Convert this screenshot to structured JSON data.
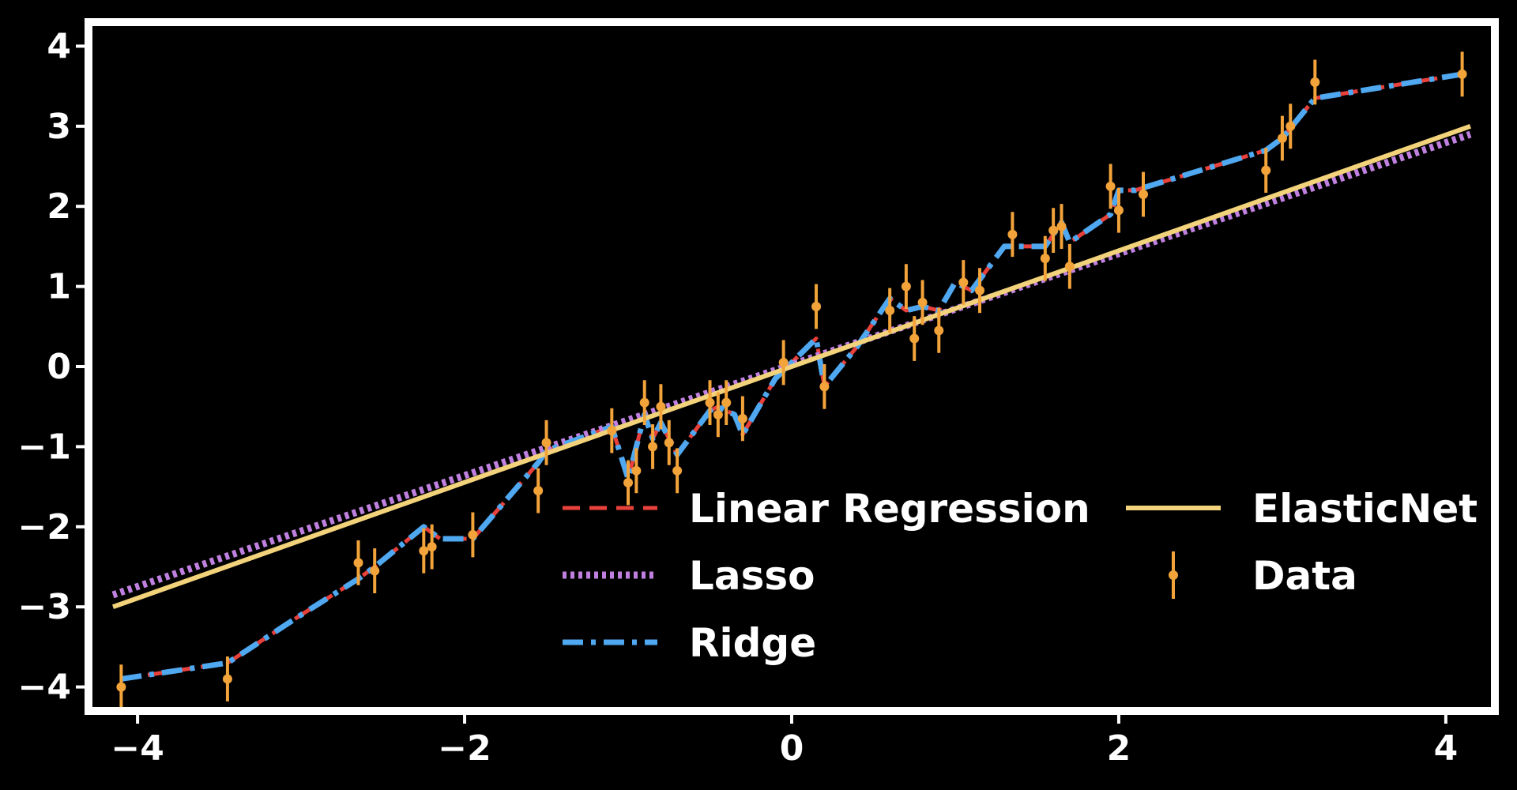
{
  "chart_data": {
    "type": "line",
    "title": "",
    "xlabel": "",
    "ylabel": "",
    "xlim": [
      -4.3,
      4.3
    ],
    "ylim": [
      -4.3,
      4.3
    ],
    "xticks": [
      -4,
      -2,
      0,
      2,
      4
    ],
    "yticks": [
      -4,
      -3,
      -2,
      -1,
      0,
      1,
      2,
      3,
      4
    ],
    "xtick_labels": [
      "−4",
      "−2",
      "0",
      "2",
      "4"
    ],
    "ytick_labels": [
      "−4",
      "−3",
      "−2",
      "−1",
      "0",
      "1",
      "2",
      "3",
      "4"
    ],
    "grid": false,
    "legend": {
      "placement": "lower-right",
      "columns": 2
    },
    "colors": {
      "background": "#000000",
      "frame": "#ffffff",
      "linear": "#e8413c",
      "lasso": "#c080e0",
      "ridge": "#4fa8f0",
      "elasticnet": "#f2d27a",
      "data": "#f2a33a"
    },
    "series": [
      {
        "name": "Linear Regression",
        "key": "linear",
        "style": "dashed",
        "x": [
          -4.1,
          -3.45,
          -3.3,
          -3.0,
          -2.65,
          -2.55,
          -2.25,
          -2.15,
          -1.95,
          -1.55,
          -1.5,
          -1.1,
          -1.0,
          -0.9,
          -0.85,
          -0.8,
          -0.7,
          -0.5,
          -0.45,
          -0.35,
          -0.3,
          -0.1,
          0.15,
          0.2,
          0.4,
          0.6,
          0.7,
          0.8,
          0.9,
          1.0,
          1.1,
          1.3,
          1.55,
          1.65,
          1.7,
          1.95,
          2.0,
          2.1,
          2.9,
          3.0,
          3.2,
          4.1
        ],
        "y": [
          -3.9,
          -3.7,
          -3.5,
          -3.1,
          -2.65,
          -2.5,
          -2.0,
          -2.15,
          -2.15,
          -1.2,
          -1.05,
          -0.75,
          -1.4,
          -0.6,
          -0.9,
          -0.7,
          -1.1,
          -0.55,
          -0.5,
          -0.6,
          -0.85,
          -0.15,
          0.35,
          -0.25,
          0.25,
          0.85,
          0.7,
          0.75,
          0.7,
          1.05,
          0.95,
          1.5,
          1.5,
          1.8,
          1.55,
          1.9,
          2.2,
          2.2,
          2.7,
          2.85,
          3.35,
          3.65
        ]
      },
      {
        "name": "Lasso",
        "key": "lasso",
        "style": "dotted",
        "x": [
          -4.15,
          4.15
        ],
        "y": [
          -2.85,
          2.9
        ]
      },
      {
        "name": "Ridge",
        "key": "ridge",
        "style": "dashdot",
        "x": [
          -4.1,
          -3.45,
          -3.3,
          -3.0,
          -2.65,
          -2.55,
          -2.25,
          -2.15,
          -1.95,
          -1.55,
          -1.5,
          -1.1,
          -1.0,
          -0.9,
          -0.85,
          -0.8,
          -0.7,
          -0.5,
          -0.45,
          -0.35,
          -0.3,
          -0.1,
          0.15,
          0.2,
          0.4,
          0.6,
          0.7,
          0.8,
          0.9,
          1.0,
          1.1,
          1.3,
          1.55,
          1.65,
          1.7,
          1.95,
          2.0,
          2.1,
          2.9,
          3.0,
          3.2,
          4.1
        ],
        "y": [
          -3.9,
          -3.7,
          -3.5,
          -3.1,
          -2.65,
          -2.5,
          -2.0,
          -2.15,
          -2.15,
          -1.2,
          -1.05,
          -0.75,
          -1.4,
          -0.6,
          -0.9,
          -0.7,
          -1.1,
          -0.55,
          -0.5,
          -0.6,
          -0.85,
          -0.15,
          0.35,
          -0.25,
          0.25,
          0.85,
          0.7,
          0.75,
          0.7,
          1.05,
          0.95,
          1.5,
          1.5,
          1.8,
          1.55,
          1.9,
          2.2,
          2.2,
          2.7,
          2.85,
          3.35,
          3.65
        ]
      },
      {
        "name": "ElasticNet",
        "key": "elasticnet",
        "style": "solid",
        "x": [
          -4.15,
          4.15
        ],
        "y": [
          -3.0,
          3.0
        ]
      }
    ],
    "data_points": {
      "name": "Data",
      "key": "data",
      "error": 0.28,
      "x": [
        -4.1,
        -3.45,
        -2.65,
        -2.55,
        -2.25,
        -2.2,
        -1.95,
        -1.55,
        -1.5,
        -1.1,
        -1.0,
        -0.95,
        -0.9,
        -0.85,
        -0.8,
        -0.75,
        -0.7,
        -0.5,
        -0.45,
        -0.4,
        -0.3,
        -0.05,
        0.15,
        0.2,
        0.6,
        0.7,
        0.75,
        0.8,
        0.9,
        1.05,
        1.15,
        1.35,
        1.55,
        1.6,
        1.65,
        1.7,
        1.95,
        2.0,
        2.15,
        2.9,
        3.0,
        3.05,
        3.2,
        4.1
      ],
      "y": [
        -4.0,
        -3.9,
        -2.45,
        -2.55,
        -2.3,
        -2.25,
        -2.1,
        -1.55,
        -0.95,
        -0.8,
        -1.45,
        -1.3,
        -0.45,
        -1.0,
        -0.5,
        -0.95,
        -1.3,
        -0.45,
        -0.6,
        -0.45,
        -0.65,
        0.05,
        0.75,
        -0.25,
        0.7,
        1.0,
        0.35,
        0.8,
        0.45,
        1.05,
        0.95,
        1.65,
        1.35,
        1.7,
        1.75,
        1.25,
        2.25,
        1.95,
        2.15,
        2.45,
        2.85,
        3.0,
        3.55,
        3.65
      ]
    }
  }
}
